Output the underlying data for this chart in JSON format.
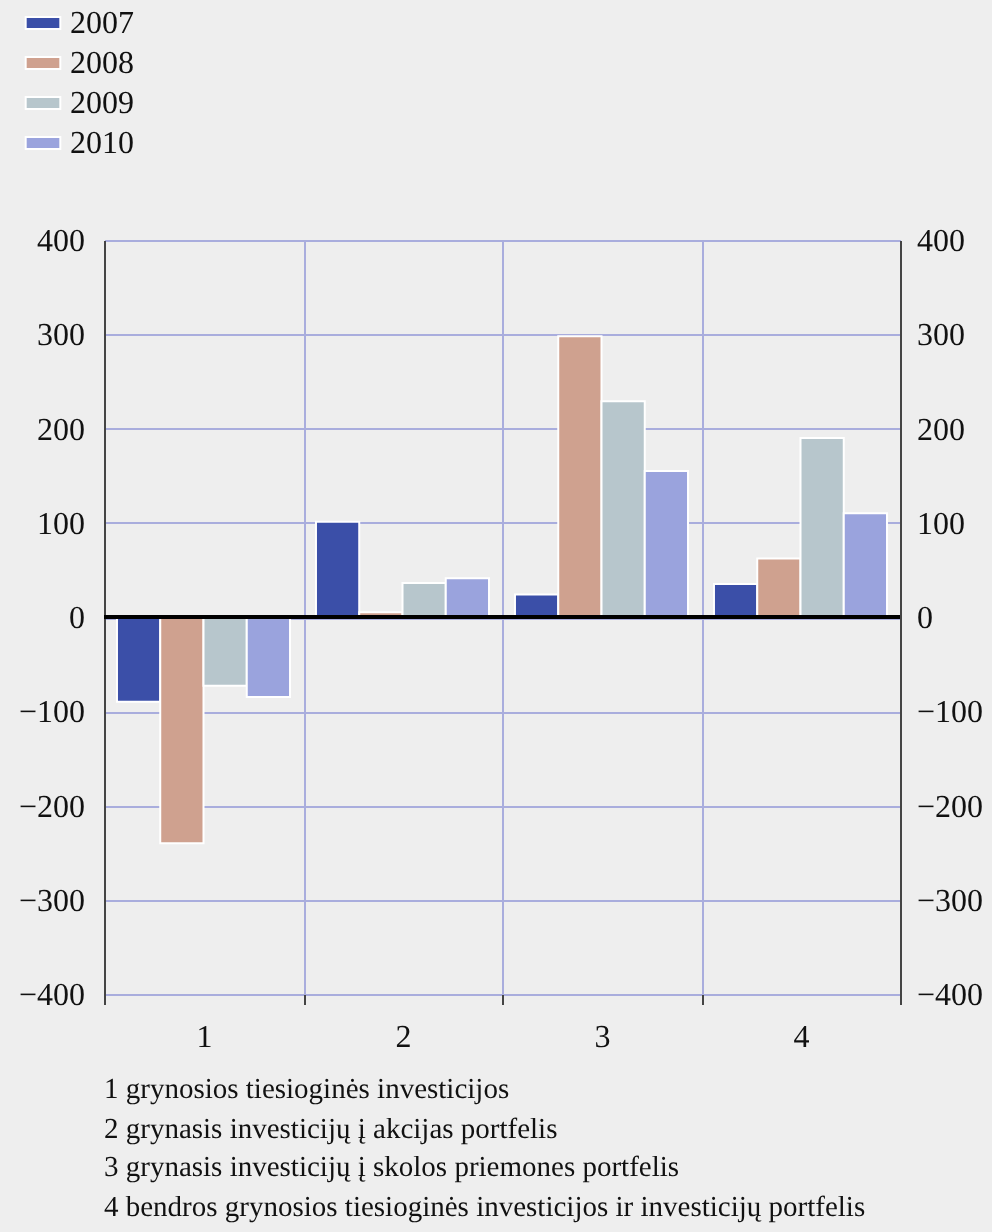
{
  "chart_data": {
    "type": "bar",
    "categories": [
      "1",
      "2",
      "3",
      "4"
    ],
    "series": [
      {
        "name": "2007",
        "color": "#3b4fa8",
        "values": [
          -90,
          101,
          24,
          35
        ]
      },
      {
        "name": "2008",
        "color": "#cfa18f",
        "values": [
          -240,
          5,
          298,
          62
        ]
      },
      {
        "name": "2009",
        "color": "#b7c6cc",
        "values": [
          -73,
          36,
          229,
          190
        ]
      },
      {
        "name": "2010",
        "color": "#9aa3dd",
        "values": [
          -85,
          41,
          155,
          110
        ]
      }
    ],
    "ylim": [
      -400,
      400
    ],
    "yticks": [
      -400,
      -300,
      -200,
      -100,
      0,
      100,
      200,
      300,
      400
    ],
    "y2lim": [
      -400,
      400
    ],
    "y2ticks": [
      -400,
      -300,
      -200,
      -100,
      0,
      100,
      200,
      300,
      400
    ],
    "ref_lines": [
      {
        "axis": "y",
        "value": 0,
        "color": "#000000"
      }
    ],
    "grid": true,
    "legend": "top left",
    "annotations": [
      "1  grynosios tiesioginės investicijos",
      "2  grynasis investicijų į akcijas portfelis",
      "3  grynasis investicijų į skolos priemones portfelis",
      "4  bendros grynosios tiesioginės investicijos ir investicijų portfelis"
    ]
  }
}
